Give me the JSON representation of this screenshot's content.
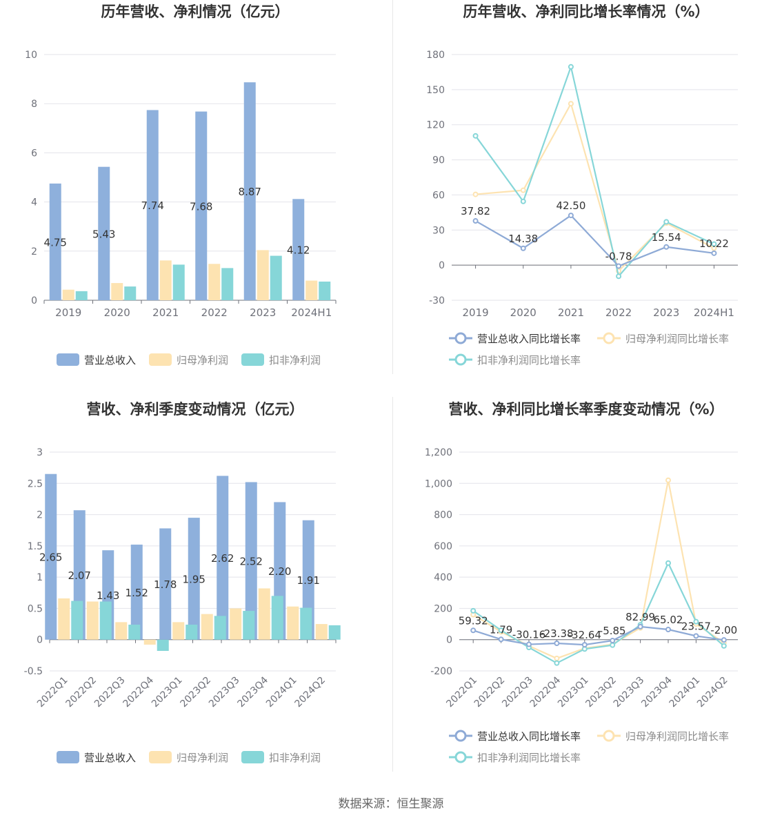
{
  "source": "数据来源：恒生聚源",
  "colors": {
    "revenue": "#8eb0dc",
    "netProfit": "#fde3b1",
    "deductNet": "#86d6d8",
    "grid": "#e3e3ea",
    "axis": "#6e7079",
    "label": "#333333",
    "title": "#333333"
  },
  "chart_data": [
    {
      "id": "annual-bars",
      "type": "bar",
      "title": "历年营收、净利情况（亿元）",
      "categories": [
        "2019",
        "2020",
        "2021",
        "2022",
        "2023",
        "2024H1"
      ],
      "ylim": [
        0,
        10
      ],
      "yticks": [
        "0",
        "2",
        "4",
        "6",
        "8",
        "10"
      ],
      "series": [
        {
          "name": "营业总收入",
          "color": "#8eb0dc",
          "values": [
            4.75,
            5.43,
            7.74,
            7.68,
            8.87,
            4.12
          ],
          "labels": [
            "4.75",
            "5.43",
            "7.74",
            "7.68",
            "8.87",
            "4.12"
          ]
        },
        {
          "name": "归母净利润",
          "color": "#fde3b1",
          "values": [
            0.43,
            0.7,
            1.62,
            1.48,
            2.04,
            0.8
          ]
        },
        {
          "name": "扣非净利润",
          "color": "#86d6d8",
          "values": [
            0.37,
            0.56,
            1.45,
            1.31,
            1.81,
            0.76
          ]
        }
      ]
    },
    {
      "id": "annual-lines",
      "type": "line",
      "title": "历年营收、净利同比增长率情况（%）",
      "categories": [
        "2019",
        "2020",
        "2021",
        "2022",
        "2023",
        "2024H1"
      ],
      "ylim": [
        -30,
        180
      ],
      "yticks": [
        "-30",
        "0",
        "30",
        "60",
        "90",
        "120",
        "150",
        "180"
      ],
      "series": [
        {
          "name": "营业总收入同比增长率",
          "color": "#8eaad6",
          "values": [
            37.82,
            14.38,
            42.5,
            -0.78,
            15.54,
            10.22
          ],
          "labels": [
            "37.82",
            "14.38",
            "42.50",
            "-0.78",
            "15.54",
            "10.22"
          ]
        },
        {
          "name": "归母净利润同比增长率",
          "color": "#fde3b1",
          "values": [
            60.5,
            64.0,
            138.0,
            -5.0,
            36.0,
            14.5
          ]
        },
        {
          "name": "扣非净利润同比增长率",
          "color": "#86d6d8",
          "values": [
            110.5,
            54.5,
            169.5,
            -9.5,
            37.0,
            18.0
          ]
        }
      ]
    },
    {
      "id": "quarter-bars",
      "type": "bar",
      "title": "营收、净利季度变动情况（亿元）",
      "categories": [
        "2022Q1",
        "2022Q2",
        "2022Q3",
        "2022Q4",
        "2023Q1",
        "2023Q2",
        "2023Q3",
        "2023Q4",
        "2024Q1",
        "2024Q2"
      ],
      "ylim": [
        -0.5,
        3
      ],
      "yticks": [
        "-0.5",
        "0",
        "0.5",
        "1",
        "1.5",
        "2",
        "2.5",
        "3"
      ],
      "series": [
        {
          "name": "营业总收入",
          "color": "#8eb0dc",
          "values": [
            2.65,
            2.07,
            1.43,
            1.52,
            1.78,
            1.95,
            2.62,
            2.52,
            2.2,
            1.91
          ],
          "labels": [
            "2.65",
            "2.07",
            "1.43",
            "1.52",
            "1.78",
            "1.95",
            "2.62",
            "2.52",
            "2.20",
            "1.91"
          ]
        },
        {
          "name": "归母净利润",
          "color": "#fde3b1",
          "values": [
            0.66,
            0.61,
            0.28,
            -0.08,
            0.28,
            0.41,
            0.5,
            0.82,
            0.53,
            0.25
          ]
        },
        {
          "name": "扣非净利润",
          "color": "#86d6d8",
          "values": [
            0.62,
            0.61,
            0.24,
            -0.18,
            0.24,
            0.38,
            0.46,
            0.7,
            0.51,
            0.23
          ]
        }
      ]
    },
    {
      "id": "quarter-lines",
      "type": "line",
      "title": "营收、净利同比增长率季度变动情况（%）",
      "categories": [
        "2022Q1",
        "2022Q2",
        "2022Q3",
        "2022Q4",
        "2023Q1",
        "2023Q2",
        "2023Q3",
        "2023Q4",
        "2024Q1",
        "2024Q2"
      ],
      "ylim": [
        -200,
        1200
      ],
      "yticks": [
        "-200",
        "0",
        "200",
        "400",
        "600",
        "800",
        "1,000",
        "1,200"
      ],
      "series": [
        {
          "name": "营业总收入同比增长率",
          "color": "#8eaad6",
          "values": [
            59.32,
            1.79,
            -30.16,
            -23.38,
            -32.64,
            -5.85,
            82.99,
            65.02,
            23.57,
            -2.0
          ],
          "labels": [
            "59.32",
            "1.79",
            "-30.16",
            "-23.38",
            "-32.64",
            "-5.85",
            "82.99",
            "65.02",
            "23.57",
            "-2.00"
          ]
        },
        {
          "name": "归母净利润同比增长率",
          "color": "#fde3b1",
          "values": [
            160,
            50,
            -40,
            -120,
            -55,
            -30,
            75,
            1020,
            100,
            -20
          ]
        },
        {
          "name": "扣非净利润同比增长率",
          "color": "#86d6d8",
          "values": [
            185,
            60,
            -50,
            -150,
            -60,
            -35,
            95,
            490,
            115,
            -40
          ]
        }
      ]
    }
  ]
}
